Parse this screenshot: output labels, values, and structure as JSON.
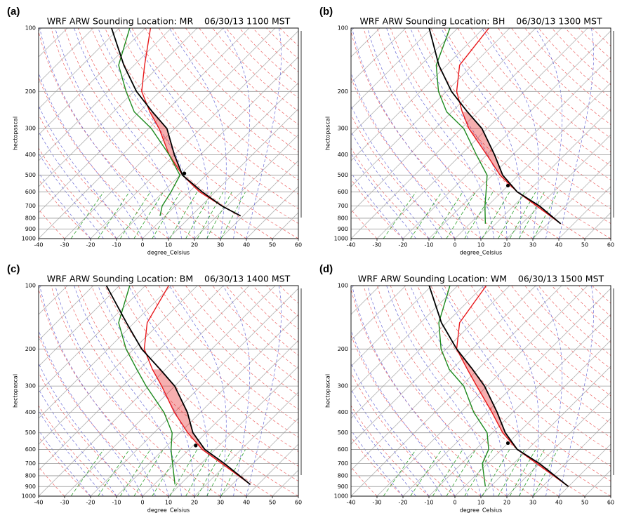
{
  "chart_data": [
    {
      "type": "skew-t",
      "label": "(a)",
      "title": "WRF ARW Sounding Location: MR    06/30/13 1100 MST",
      "xlabel": "degree_Celsius",
      "ylabel": "hectopascal",
      "log_y": true,
      "grid": true,
      "xlim": [
        -40,
        60
      ],
      "ylim": [
        1000,
        100
      ],
      "xticks": [
        -40,
        -30,
        -20,
        -10,
        0,
        10,
        20,
        30,
        40,
        50,
        60
      ],
      "yticks": [
        100,
        200,
        300,
        400,
        500,
        600,
        700,
        800,
        900,
        1000
      ],
      "levels": [
        100,
        150,
        200,
        250,
        300,
        400,
        500,
        600,
        700,
        780
      ],
      "series": [
        {
          "color": "#e8191c",
          "values": [
            -78,
            -66,
            -57,
            -46,
            -36,
            -22,
            -9,
            4,
            18,
            29
          ]
        },
        {
          "color": "#1f8a1f",
          "values": [
            -86,
            -76,
            -63,
            -52,
            -39,
            -22,
            -10,
            -7,
            -5,
            -2
          ]
        },
        {
          "color": "#000000",
          "values": [
            -93,
            -74,
            -59,
            -45,
            -33,
            -20,
            -9,
            5,
            18,
            29
          ]
        }
      ],
      "lcl": {
        "pressure": 490,
        "temperature": -9
      },
      "shade_color": "#e8191c"
    },
    {
      "type": "skew-t",
      "label": "(b)",
      "title": "WRF ARW Sounding Location: BH    06/30/13 1300 MST",
      "xlabel": "degree_Celsius",
      "ylabel": "hectopascal",
      "log_y": true,
      "grid": true,
      "xlim": [
        -40,
        60
      ],
      "ylim": [
        1000,
        100
      ],
      "xticks": [
        -40,
        -30,
        -20,
        -10,
        0,
        10,
        20,
        30,
        40,
        50,
        60
      ],
      "yticks": [
        100,
        200,
        300,
        400,
        500,
        600,
        700,
        800,
        900,
        1000
      ],
      "levels": [
        100,
        150,
        200,
        250,
        300,
        400,
        500,
        600,
        700,
        850
      ],
      "series": [
        {
          "color": "#e8191c",
          "values": [
            -68,
            -65,
            -56,
            -46,
            -37,
            -20,
            -7,
            6,
            19,
            35
          ]
        },
        {
          "color": "#1f8a1f",
          "values": [
            -83,
            -74,
            -63,
            -52,
            -39,
            -24,
            -12,
            -6,
            -1,
            6
          ]
        },
        {
          "color": "#000000",
          "values": [
            -91,
            -73,
            -58,
            -44,
            -32,
            -17,
            -6,
            6,
            20,
            35
          ]
        }
      ],
      "lcl": {
        "pressure": 560,
        "temperature": 0
      },
      "shade_color": "#e8191c"
    },
    {
      "type": "skew-t",
      "label": "(c)",
      "title": "WRF ARW Sounding Location: BM    06/30/13 1400 MST",
      "xlabel": "degree_Celsius",
      "ylabel": "hectopascal",
      "log_y": true,
      "grid": true,
      "xlim": [
        -40,
        60
      ],
      "ylim": [
        1000,
        100
      ],
      "xticks": [
        -40,
        -30,
        -20,
        -10,
        0,
        10,
        20,
        30,
        40,
        50,
        60
      ],
      "yticks": [
        100,
        200,
        300,
        400,
        500,
        600,
        700,
        800,
        900,
        1000
      ],
      "levels": [
        100,
        150,
        200,
        250,
        300,
        400,
        500,
        600,
        700,
        880
      ],
      "series": [
        {
          "color": "#e8191c",
          "values": [
            -71,
            -65,
            -56,
            -45,
            -35,
            -20,
            -7,
            5,
            18,
            37
          ]
        },
        {
          "color": "#1f8a1f",
          "values": [
            -86,
            -76,
            -63,
            -51,
            -41,
            -24,
            -13,
            -7,
            -1,
            8
          ]
        },
        {
          "color": "#000000",
          "values": [
            -95,
            -73,
            -57,
            -42,
            -30,
            -15,
            -5,
            6,
            19,
            37
          ]
        }
      ],
      "lcl": {
        "pressure": 575,
        "temperature": 1
      },
      "shade_color": "#e8191c"
    },
    {
      "type": "skew-t",
      "label": "(d)",
      "title": "WRF ARW Sounding Location: WM    06/30/13 1500 MST",
      "xlabel": "degree_Celsius",
      "ylabel": "hectopascal",
      "log_y": true,
      "grid": true,
      "xlim": [
        -40,
        60
      ],
      "ylim": [
        1000,
        100
      ],
      "xticks": [
        -40,
        -30,
        -20,
        -10,
        0,
        10,
        20,
        30,
        40,
        50,
        60
      ],
      "yticks": [
        100,
        200,
        300,
        400,
        500,
        600,
        700,
        800,
        900,
        1000
      ],
      "levels": [
        100,
        150,
        200,
        250,
        300,
        400,
        500,
        600,
        700,
        900
      ],
      "series": [
        {
          "color": "#e8191c",
          "values": [
            -69,
            -65,
            -56,
            -44,
            -34,
            -18,
            -6,
            6,
            19,
            40
          ]
        },
        {
          "color": "#1f8a1f",
          "values": [
            -83,
            -73,
            -62,
            -51,
            -39,
            -25,
            -12,
            -5,
            -2,
            8
          ]
        },
        {
          "color": "#000000",
          "values": [
            -91,
            -72,
            -56,
            -42,
            -31,
            -16,
            -5,
            6,
            20,
            40
          ]
        }
      ],
      "lcl": {
        "pressure": 560,
        "temperature": 0
      },
      "shade_color": "#e8191c"
    }
  ]
}
